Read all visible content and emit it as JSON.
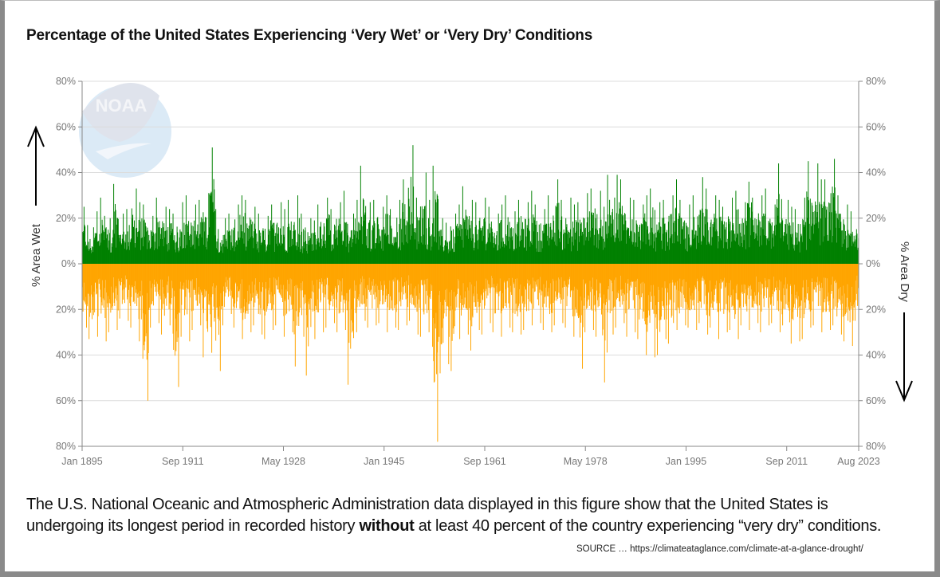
{
  "chart_data": {
    "type": "bar",
    "title": "Percentage of the United States Experiencing ‘Very Wet’ or ‘Very Dry’ Conditions",
    "ylabel_left": "% Area Wet",
    "ylabel_right": "% Area Dry",
    "x_range": [
      "Jan 1895",
      "Aug 2023"
    ],
    "x_start_year": 1895,
    "x_months": 1544,
    "xticks": [
      "Jan 1895",
      "Sep 1911",
      "May 1928",
      "Jan 1945",
      "Sep 1961",
      "May 1978",
      "Jan 1995",
      "Sep 2011",
      "Aug 2023"
    ],
    "yticks": [
      "80%",
      "60%",
      "40%",
      "20%",
      "0%",
      "20%",
      "40%",
      "60%",
      "80%"
    ],
    "ylim": [
      -80,
      80
    ],
    "grid": true,
    "series": [
      {
        "name": "% Area Wet",
        "color": "#008000",
        "annual_peak": [
          25,
          16,
          23,
          29,
          20,
          35,
          22,
          24,
          33,
          27,
          26,
          21,
          29,
          25,
          24,
          22,
          27,
          30,
          26,
          28,
          31,
          51,
          24,
          20,
          22,
          26,
          30,
          28,
          25,
          22,
          21,
          26,
          27,
          24,
          28,
          30,
          22,
          20,
          19,
          26,
          29,
          24,
          27,
          32,
          22,
          28,
          43,
          27,
          28,
          25,
          30,
          24,
          28,
          37,
          52,
          29,
          40,
          28,
          43,
          20,
          18,
          22,
          26,
          34,
          28,
          27,
          29,
          25,
          22,
          26,
          30,
          23,
          28,
          27,
          32,
          26,
          24,
          30,
          37,
          28,
          29,
          26,
          27,
          31,
          33,
          32,
          25,
          39,
          39,
          37,
          29,
          28,
          26,
          30,
          33,
          27,
          28,
          30,
          37,
          28,
          26,
          30,
          38,
          33,
          30,
          28,
          25,
          29,
          32,
          27,
          36,
          29,
          30,
          33,
          26,
          44,
          28,
          25,
          24,
          29,
          45,
          44,
          37,
          37,
          46,
          30,
          26,
          23,
          24
        ]
      },
      {
        "name": "% Area Dry",
        "color": "#FFA500",
        "annual_peak": [
          28,
          33,
          32,
          34,
          30,
          29,
          24,
          25,
          28,
          34,
          60,
          28,
          26,
          31,
          27,
          54,
          32,
          34,
          29,
          27,
          41,
          39,
          47,
          27,
          22,
          28,
          33,
          30,
          27,
          31,
          33,
          29,
          27,
          32,
          30,
          45,
          32,
          49,
          33,
          30,
          28,
          26,
          30,
          29,
          53,
          30,
          25,
          28,
          27,
          26,
          30,
          28,
          29,
          27,
          25,
          31,
          32,
          30,
          78,
          48,
          44,
          47,
          33,
          31,
          38,
          29,
          31,
          26,
          30,
          32,
          28,
          30,
          31,
          29,
          27,
          26,
          29,
          30,
          27,
          26,
          28,
          32,
          46,
          30,
          29,
          32,
          52,
          31,
          28,
          26,
          32,
          30,
          33,
          40,
          41,
          40,
          33,
          35,
          29,
          27,
          28,
          29,
          26,
          31,
          28,
          33,
          30,
          29,
          33,
          27,
          29,
          26,
          30,
          27,
          26,
          30,
          27,
          35,
          34,
          33,
          28,
          27,
          30,
          29,
          27,
          31,
          34,
          36,
          25
        ]
      }
    ]
  },
  "logo": {
    "text": "NOAA"
  },
  "caption": {
    "before": "The U.S. National Oceanic and Atmospheric Administration data displayed in this figure show that the United States is undergoing its longest period in recorded history ",
    "emphasis": "without",
    "after": " at least 40 percent of the country experiencing “very dry” conditions."
  },
  "source": "SOURCE … https://climateataglance.com/climate-at-a-glance-drought/"
}
